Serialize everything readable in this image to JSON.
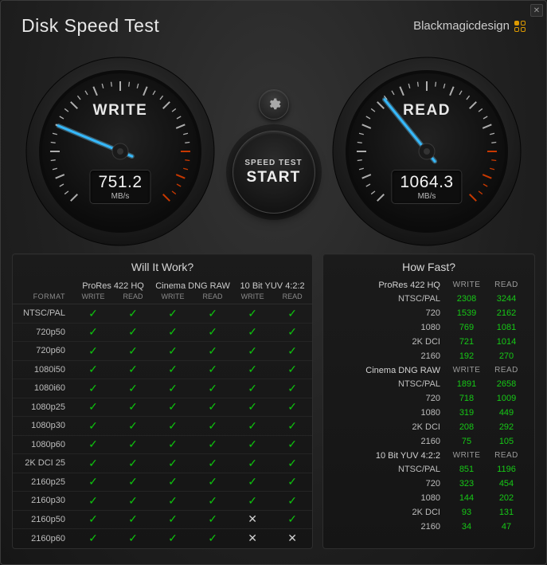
{
  "app_title": "Disk Speed Test",
  "brand": "Blackmagicdesign",
  "close_glyph": "✕",
  "start": {
    "top": "SPEED TEST",
    "main": "START"
  },
  "gauges": {
    "write": {
      "label": "WRITE",
      "value": "751.2",
      "unit": "MB/s",
      "fraction": 0.25
    },
    "read": {
      "label": "READ",
      "value": "1064.3",
      "unit": "MB/s",
      "fraction": 0.355
    }
  },
  "gauge_style": {
    "ticks": 36,
    "start_deg": 135,
    "sweep_deg": 270,
    "redzone_from_tick": 30,
    "rim_color_a": "#3c3c3c",
    "rim_color_b": "#141414",
    "face_color_a": "#222222",
    "face_color_b": "#0a0a0a",
    "tick_color": "#c9c9c9",
    "tick_color_red": "#d23b00",
    "needle_color": "#35b9ff",
    "needle_glow": "#77d8ff",
    "hub_color": "#1a1a1a"
  },
  "will_it_work": {
    "title": "Will It Work?",
    "groups": [
      "ProRes 422 HQ",
      "Cinema DNG RAW",
      "10 Bit YUV 4:2:2"
    ],
    "sub": [
      "FORMAT",
      "WRITE",
      "READ",
      "WRITE",
      "READ",
      "WRITE",
      "READ"
    ],
    "rows": [
      {
        "label": "NTSC/PAL",
        "marks": [
          1,
          1,
          1,
          1,
          1,
          1
        ]
      },
      {
        "label": "720p50",
        "marks": [
          1,
          1,
          1,
          1,
          1,
          1
        ]
      },
      {
        "label": "720p60",
        "marks": [
          1,
          1,
          1,
          1,
          1,
          1
        ]
      },
      {
        "label": "1080i50",
        "marks": [
          1,
          1,
          1,
          1,
          1,
          1
        ]
      },
      {
        "label": "1080i60",
        "marks": [
          1,
          1,
          1,
          1,
          1,
          1
        ]
      },
      {
        "label": "1080p25",
        "marks": [
          1,
          1,
          1,
          1,
          1,
          1
        ]
      },
      {
        "label": "1080p30",
        "marks": [
          1,
          1,
          1,
          1,
          1,
          1
        ]
      },
      {
        "label": "1080p60",
        "marks": [
          1,
          1,
          1,
          1,
          1,
          1
        ]
      },
      {
        "label": "2K DCI 25",
        "marks": [
          1,
          1,
          1,
          1,
          1,
          1
        ]
      },
      {
        "label": "2160p25",
        "marks": [
          1,
          1,
          1,
          1,
          1,
          1
        ]
      },
      {
        "label": "2160p30",
        "marks": [
          1,
          1,
          1,
          1,
          1,
          1
        ]
      },
      {
        "label": "2160p50",
        "marks": [
          1,
          1,
          1,
          1,
          0,
          1
        ]
      },
      {
        "label": "2160p60",
        "marks": [
          1,
          1,
          1,
          1,
          0,
          0
        ]
      }
    ]
  },
  "how_fast": {
    "title": "How Fast?",
    "head_write": "WRITE",
    "head_read": "READ",
    "sections": [
      {
        "name": "ProRes 422 HQ",
        "rows": [
          {
            "label": "NTSC/PAL",
            "write": "2308",
            "read": "3244"
          },
          {
            "label": "720",
            "write": "1539",
            "read": "2162"
          },
          {
            "label": "1080",
            "write": "769",
            "read": "1081"
          },
          {
            "label": "2K DCI",
            "write": "721",
            "read": "1014"
          },
          {
            "label": "2160",
            "write": "192",
            "read": "270"
          }
        ]
      },
      {
        "name": "Cinema DNG RAW",
        "rows": [
          {
            "label": "NTSC/PAL",
            "write": "1891",
            "read": "2658"
          },
          {
            "label": "720",
            "write": "718",
            "read": "1009"
          },
          {
            "label": "1080",
            "write": "319",
            "read": "449"
          },
          {
            "label": "2K DCI",
            "write": "208",
            "read": "292"
          },
          {
            "label": "2160",
            "write": "75",
            "read": "105"
          }
        ]
      },
      {
        "name": "10 Bit YUV 4:2:2",
        "rows": [
          {
            "label": "NTSC/PAL",
            "write": "851",
            "read": "1196"
          },
          {
            "label": "720",
            "write": "323",
            "read": "454"
          },
          {
            "label": "1080",
            "write": "144",
            "read": "202"
          },
          {
            "label": "2K DCI",
            "write": "93",
            "read": "131"
          },
          {
            "label": "2160",
            "write": "34",
            "read": "47"
          }
        ]
      }
    ]
  }
}
